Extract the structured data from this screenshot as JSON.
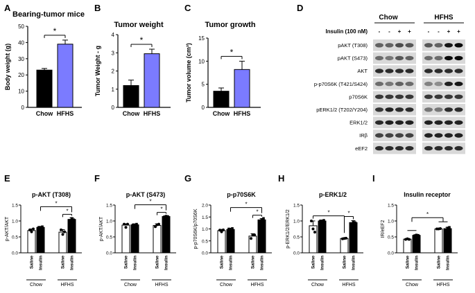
{
  "colors": {
    "black": "#000000",
    "hfhs": "#7b7bff",
    "white": "#ffffff",
    "blot_bg": "#d9d9d9"
  },
  "chart_data": [
    {
      "type": "bar",
      "panel": "A",
      "title": "Bearing-tumor mice",
      "ylabel": "Body weight (g)",
      "categories": [
        "Chow",
        "HFHS"
      ],
      "values": [
        23,
        39
      ],
      "errors": [
        1,
        2.5
      ],
      "ylim": [
        0,
        50
      ],
      "yticks": [
        "0",
        "10",
        "20",
        "30",
        "40",
        "50"
      ],
      "significance": "*"
    },
    {
      "type": "bar",
      "panel": "B",
      "title": "Tumor weight",
      "ylabel": "Tumor Weight - g",
      "categories": [
        "Chow",
        "HFHS"
      ],
      "values": [
        1.2,
        2.95
      ],
      "errors": [
        0.3,
        0.25
      ],
      "ylim": [
        0,
        4
      ],
      "yticks": [
        "0",
        "1",
        "2",
        "3",
        "4"
      ],
      "significance": "*"
    },
    {
      "type": "bar",
      "panel": "C",
      "title": "Tumor growth",
      "ylabel": "Tumor volume (cm³)",
      "categories": [
        "Chow",
        "HFHS"
      ],
      "values": [
        3.5,
        8.2
      ],
      "errors": [
        0.7,
        1.8
      ],
      "ylim": [
        0,
        15
      ],
      "yticks": [
        "0",
        "5",
        "10",
        "15"
      ],
      "significance": "*"
    },
    {
      "type": "bar",
      "panel": "E",
      "title": "p-AKT (T308)",
      "ylabel": "p-AKT/AKT",
      "categories": [
        "Saline",
        "Insulin",
        "Saline",
        "Insulin"
      ],
      "groups": [
        "Chow",
        "HFHS"
      ],
      "values": [
        0.7,
        0.8,
        0.65,
        1.05
      ],
      "errors": [
        0.05,
        0.03,
        0.08,
        0.05
      ],
      "points": [
        [
          0.72,
          0.66,
          0.75
        ],
        [
          0.8,
          0.78,
          0.82
        ],
        [
          0.72,
          0.58,
          0.66
        ],
        [
          1.02,
          1.08,
          1.04
        ]
      ],
      "ylim": [
        0,
        1.5
      ],
      "yticks": [
        "0.0",
        "0.5",
        "1.0",
        "1.5"
      ],
      "significance": "*"
    },
    {
      "type": "bar",
      "panel": "F",
      "title": "p-AKT (S473)",
      "ylabel": "p-AKT/AKT",
      "categories": [
        "Saline",
        "Insulin",
        "Saline",
        "Insulin"
      ],
      "groups": [
        "Chow",
        "HFHS"
      ],
      "values": [
        0.87,
        0.88,
        0.86,
        1.14
      ],
      "errors": [
        0.04,
        0.03,
        0.05,
        0.02
      ],
      "points": [
        [
          0.9,
          0.8,
          0.9
        ],
        [
          0.88,
          0.86,
          0.9
        ],
        [
          0.82,
          0.88,
          0.9
        ],
        [
          1.13,
          1.15,
          1.14
        ]
      ],
      "ylim": [
        0,
        1.5
      ],
      "yticks": [
        "0.0",
        "0.5",
        "1.0",
        "1.5"
      ],
      "significance": "*"
    },
    {
      "type": "bar",
      "panel": "G",
      "title": "p-p70S6K",
      "ylabel": "p-p70S6K/p70S6K",
      "categories": [
        "Saline",
        "Insulin",
        "Saline",
        "Insulin"
      ],
      "groups": [
        "Chow",
        "HFHS"
      ],
      "values": [
        0.93,
        0.98,
        0.7,
        1.38
      ],
      "errors": [
        0.05,
        0.05,
        0.1,
        0.05
      ],
      "points": [
        [
          0.95,
          0.88,
          0.96
        ],
        [
          1.0,
          0.92,
          1.02
        ],
        [
          0.6,
          0.75,
          0.75
        ],
        [
          1.3,
          1.4,
          1.44
        ]
      ],
      "ylim": [
        0,
        2.0
      ],
      "yticks": [
        "0.0",
        "0.5",
        "1.0",
        "1.5",
        "2.0"
      ],
      "significance": "*"
    },
    {
      "type": "bar",
      "panel": "H",
      "title": "p-ERK1/2",
      "ylabel": "p-ERK1/2/ERK1/2",
      "categories": [
        "Saline",
        "Insulin",
        "Saline",
        "Insulin"
      ],
      "groups": [
        "Chow",
        "HFHS"
      ],
      "values": [
        0.85,
        1.0,
        0.45,
        0.95
      ],
      "errors": [
        0.15,
        0.03,
        0.01,
        0.06
      ],
      "points": [
        [
          1.0,
          0.75,
          0.65
        ],
        [
          1.0,
          0.98,
          1.02
        ],
        [
          0.44,
          0.45,
          0.46
        ],
        [
          0.9,
          0.98,
          0.95
        ]
      ],
      "ylim": [
        0,
        1.5
      ],
      "yticks": [
        "0.0",
        "0.5",
        "1.0",
        "1.5"
      ],
      "significance": "*"
    },
    {
      "type": "bar",
      "panel": "I",
      "title": "Insulin receptor",
      "ylabel": "IR/eEF2",
      "categories": [
        "Saline",
        "Insulin",
        "Saline",
        "Insulin"
      ],
      "groups": [
        "Chow",
        "HFHS"
      ],
      "values": [
        0.43,
        0.55,
        0.75,
        0.76
      ],
      "errors": [
        0.02,
        0.02,
        0.01,
        0.04
      ],
      "points": [
        [
          0.42,
          0.44,
          0.42
        ],
        [
          0.54,
          0.56,
          0.55
        ],
        [
          0.75,
          0.75,
          0.76
        ],
        [
          0.7,
          0.78,
          0.8
        ]
      ],
      "ylim": [
        0,
        1.5
      ],
      "yticks": [
        "0.0",
        "0.5",
        "1.0",
        "1.5"
      ],
      "significance": "*"
    }
  ],
  "panel_labels": [
    "A",
    "B",
    "C",
    "D",
    "E",
    "F",
    "G",
    "H",
    "I"
  ],
  "western_blot": {
    "group_labels": [
      "Chow",
      "HFHS"
    ],
    "insulin_label": "Insulin (100 nM)",
    "insulin_signs": [
      "-",
      "-",
      "+",
      "+",
      "-",
      "-",
      "+",
      "+"
    ],
    "rows": [
      "pAKT (T308)",
      "pAKT (S473)",
      "AKT",
      "p-p70S6K (T421/S424)",
      "p70S6K",
      "pERK1/2 (T202/Y204)",
      "ERK1/2",
      "IRβ",
      "eEF2"
    ],
    "intensities": [
      [
        0.55,
        0.55,
        0.65,
        0.6,
        0.6,
        0.55,
        0.9,
        0.95
      ],
      [
        0.5,
        0.45,
        0.6,
        0.55,
        0.5,
        0.5,
        0.95,
        0.95
      ],
      [
        0.8,
        0.8,
        0.8,
        0.8,
        0.8,
        0.8,
        0.8,
        0.8
      ],
      [
        0.5,
        0.45,
        0.55,
        0.5,
        0.4,
        0.35,
        0.85,
        0.9
      ],
      [
        0.75,
        0.75,
        0.75,
        0.75,
        0.75,
        0.75,
        0.75,
        0.75
      ],
      [
        0.75,
        0.85,
        0.8,
        0.8,
        0.45,
        0.45,
        0.8,
        0.8
      ],
      [
        0.8,
        0.85,
        0.85,
        0.85,
        0.85,
        0.85,
        0.85,
        0.85
      ],
      [
        0.7,
        0.7,
        0.7,
        0.7,
        0.85,
        0.85,
        0.85,
        0.85
      ],
      [
        0.8,
        0.8,
        0.8,
        0.8,
        0.8,
        0.8,
        0.8,
        0.8
      ]
    ]
  }
}
